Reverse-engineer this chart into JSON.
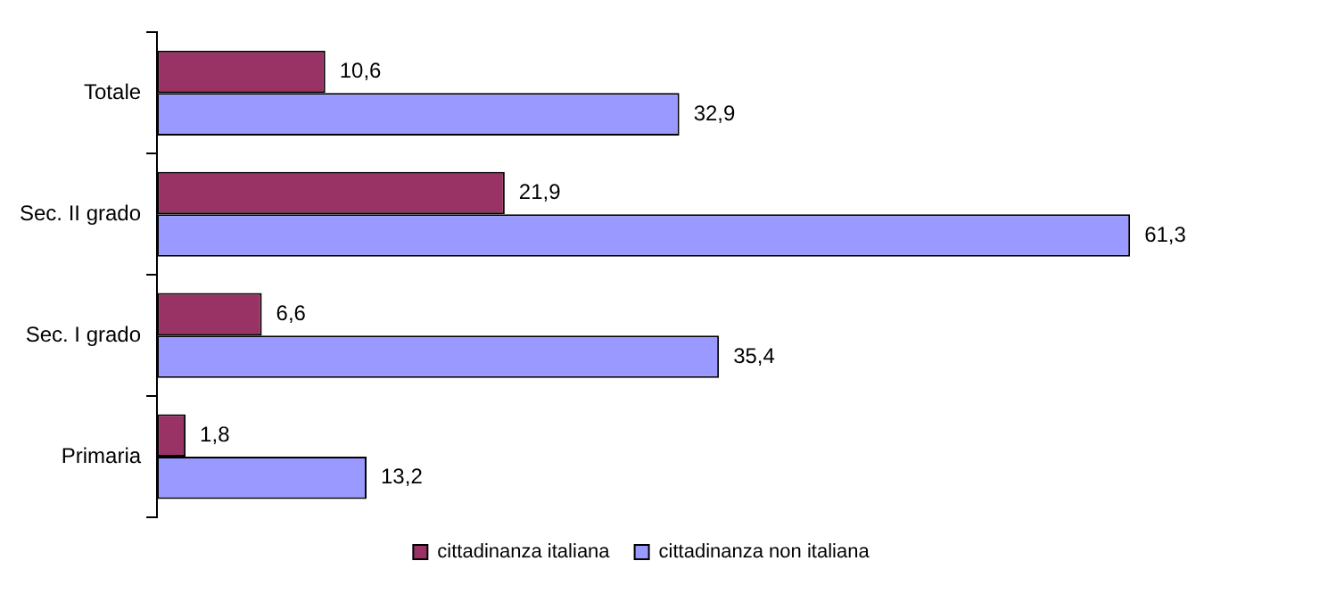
{
  "chart_data": {
    "type": "bar",
    "orientation": "horizontal",
    "categories": [
      "Totale",
      "Sec. II grado",
      "Sec. I grado",
      "Primaria"
    ],
    "series": [
      {
        "name": "cittadinanza italiana",
        "color": "#993366",
        "values": [
          10.6,
          21.9,
          6.6,
          1.8
        ],
        "value_labels": [
          "10,6",
          "21,9",
          "6,6",
          "1,8"
        ]
      },
      {
        "name": "cittadinanza non italiana",
        "color": "#9999ff",
        "values": [
          32.9,
          61.3,
          35.4,
          13.2
        ],
        "value_labels": [
          "32,9",
          "61,3",
          "35,4",
          "13,2"
        ]
      }
    ],
    "tick_labels": "y",
    "legend": "bottom"
  }
}
